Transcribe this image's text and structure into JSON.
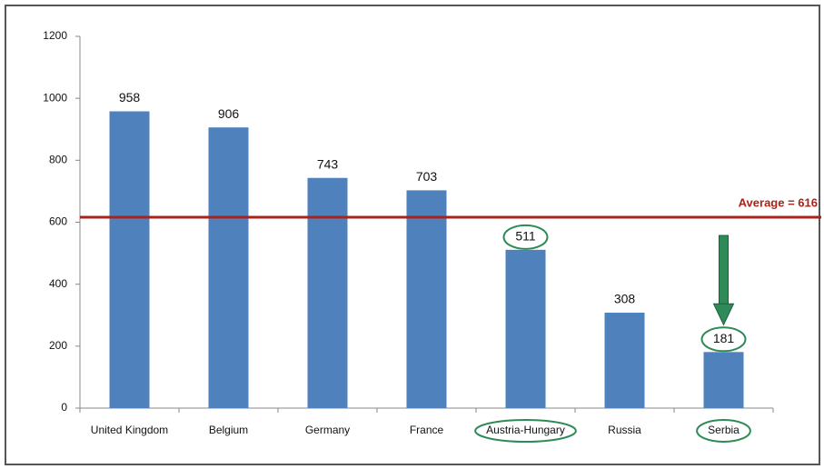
{
  "chart_data": {
    "type": "bar",
    "categories": [
      "United Kingdom",
      "Belgium",
      "Germany",
      "France",
      "Austria-Hungary",
      "Russia",
      "Serbia"
    ],
    "values": [
      958,
      906,
      743,
      703,
      511,
      308,
      181
    ],
    "color": "#4f81bd",
    "ylim": [
      0,
      1200
    ],
    "yticks": [
      0,
      200,
      400,
      600,
      800,
      1000,
      1200
    ],
    "grid": false,
    "average": {
      "value": 616,
      "label": "Average = 616",
      "color": "#a8231c"
    },
    "highlight": [
      4,
      6
    ],
    "highlight_color": "#2e8b57",
    "arrow_to": 6
  }
}
